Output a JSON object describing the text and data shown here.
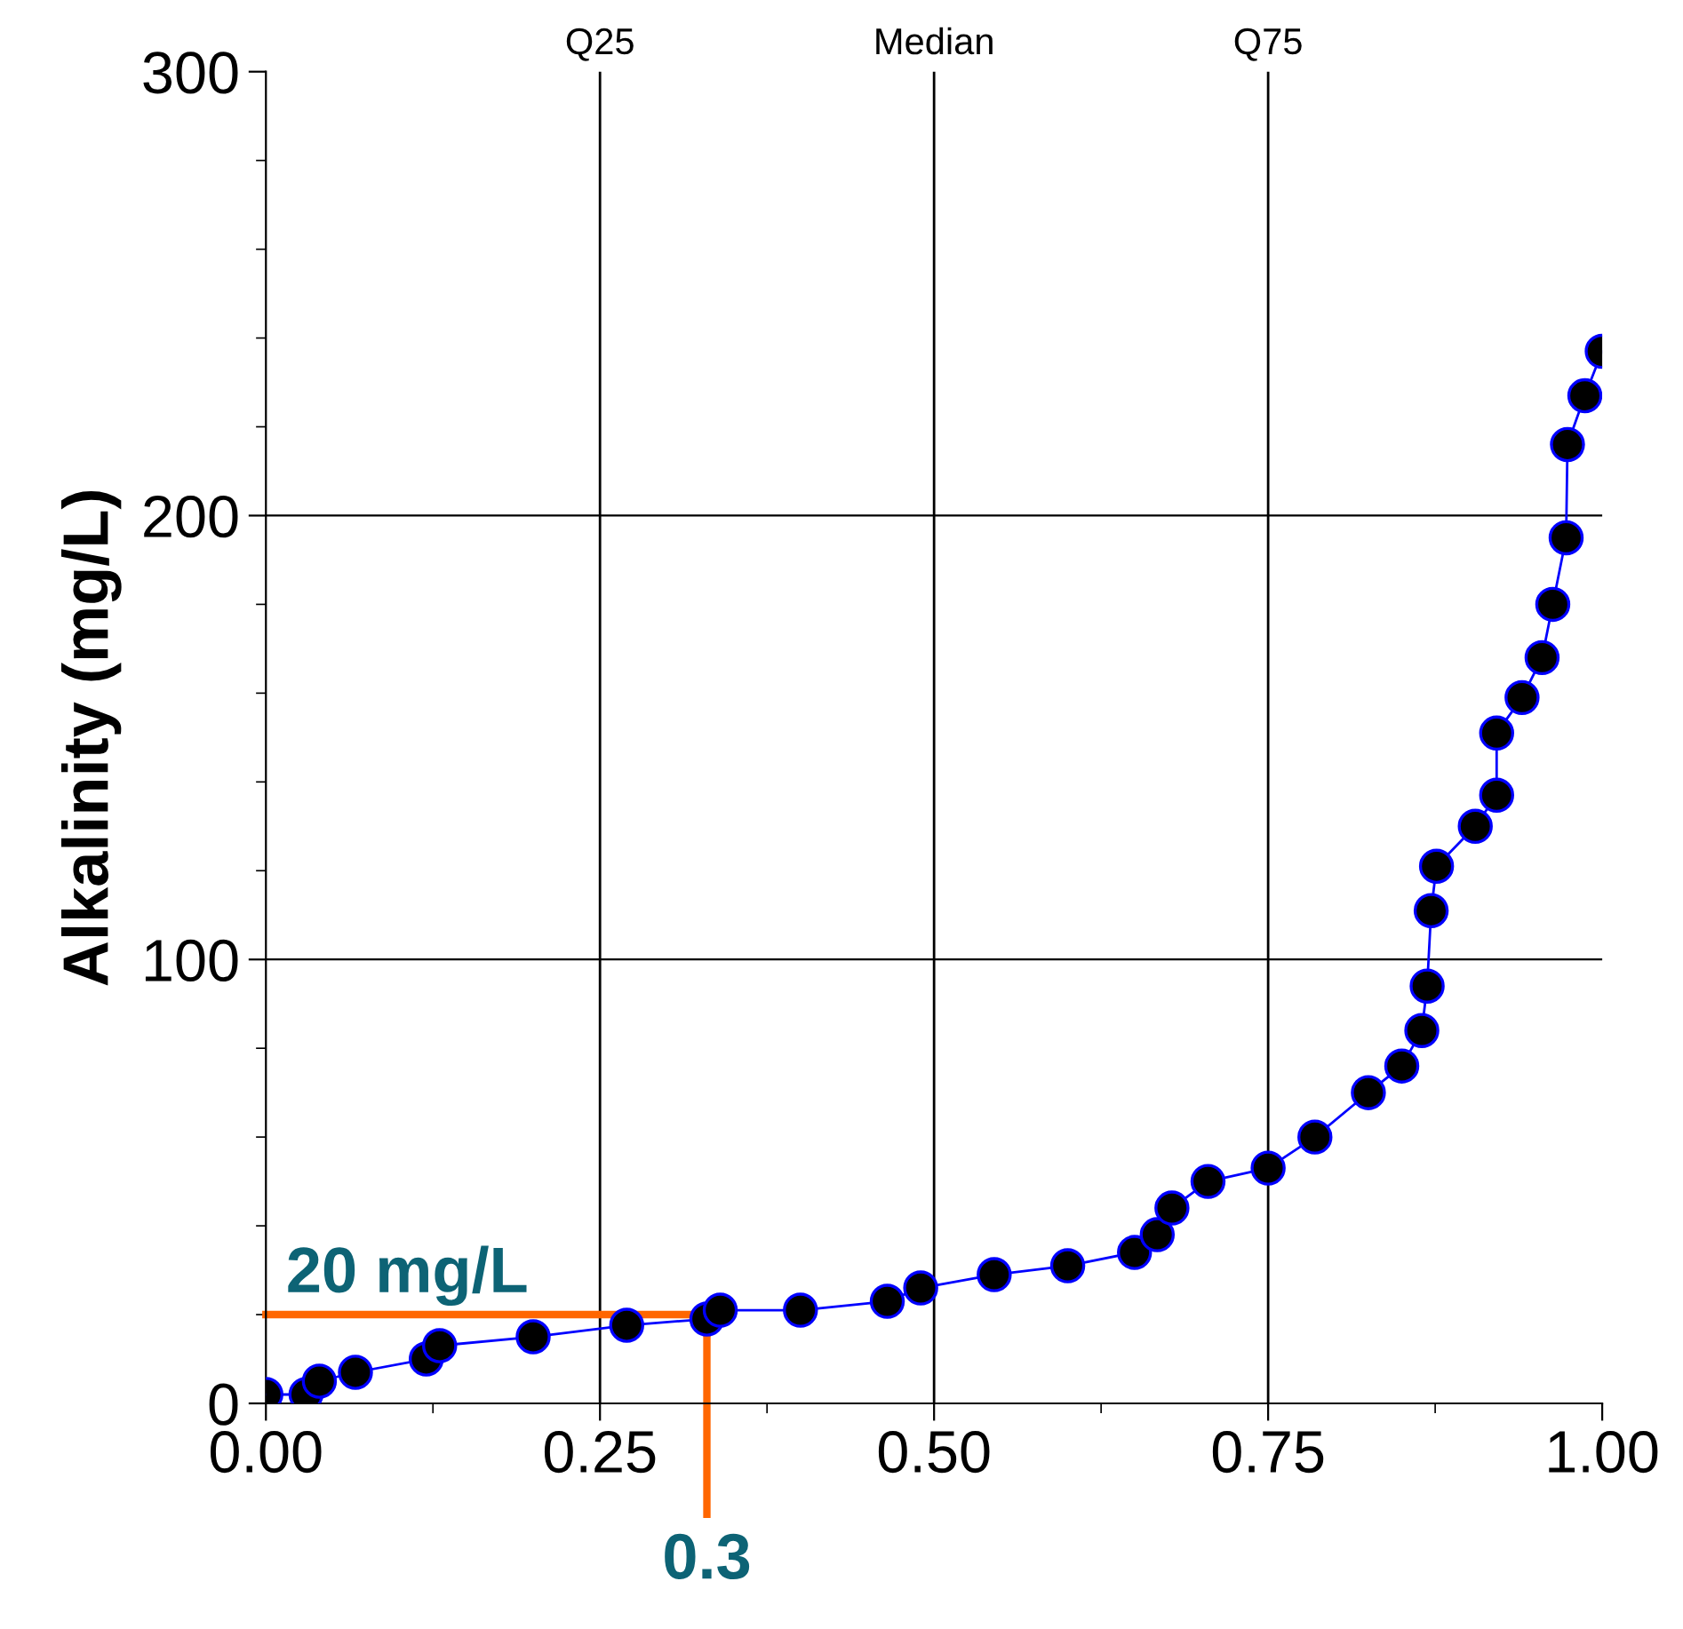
{
  "chart_data": {
    "type": "line",
    "ylabel": "Alkalinity (mg/L)",
    "marker": "circle",
    "grid": "y",
    "xlim": [
      0,
      1
    ],
    "ylim": [
      0,
      300
    ],
    "xticks": [
      {
        "value": 0,
        "label": "0.00"
      },
      {
        "value": 0.125,
        "label": null
      },
      {
        "value": 0.25,
        "label": "0.25"
      },
      {
        "value": 0.375,
        "label": null
      },
      {
        "value": 0.5,
        "label": "0.50"
      },
      {
        "value": 0.625,
        "label": null
      },
      {
        "value": 0.75,
        "label": "0.75"
      },
      {
        "value": 0.875,
        "label": null
      },
      {
        "value": 1,
        "label": "1.00"
      }
    ],
    "yticks": [
      0,
      {
        "value": 20,
        "label": null
      },
      {
        "value": 40,
        "label": null
      },
      {
        "value": 60,
        "label": null
      },
      {
        "value": 80,
        "label": null
      },
      100,
      {
        "value": 120,
        "label": null
      },
      {
        "value": 140,
        "label": null
      },
      {
        "value": 160,
        "label": null
      },
      {
        "value": 180,
        "label": null
      },
      200,
      {
        "value": 220,
        "label": null
      },
      {
        "value": 240,
        "label": null
      },
      {
        "value": 260,
        "label": null
      },
      {
        "value": 280,
        "label": null
      },
      300
    ],
    "series": [
      {
        "color": "#0000ff",
        "x": [
          0,
          0.03,
          0.04,
          0.067,
          0.12,
          0.13,
          0.2,
          0.27,
          0.33,
          0.34,
          0.4,
          0.465,
          0.49,
          0.545,
          0.6,
          0.65,
          0.667,
          0.678,
          0.705,
          0.75,
          0.785,
          0.825,
          0.85,
          0.865,
          0.869,
          0.872,
          0.876,
          0.905,
          0.921,
          0.921,
          0.94,
          0.955,
          0.963,
          0.973,
          0.974,
          0.987,
          1.0
        ],
        "values": [
          2,
          2,
          5,
          7,
          10,
          13,
          15,
          17.6,
          19,
          21,
          21,
          23,
          26,
          29,
          31,
          34,
          38,
          44,
          50,
          53,
          60,
          70,
          76,
          84,
          94,
          111,
          121,
          130,
          137,
          151,
          159,
          168,
          180,
          195,
          216,
          227,
          237
        ]
      }
    ],
    "ref_lines": [
      {
        "axis": "y",
        "value": 20,
        "label": "20 mg/L",
        "color": "#ff6600"
      },
      {
        "axis": "x",
        "value": 0.33,
        "label": "0.3",
        "color": "#ff6600"
      },
      {
        "axis": "x",
        "value": 0.25,
        "label": "Q25",
        "color": "#000000"
      },
      {
        "axis": "x",
        "value": 0.5,
        "label": "Median",
        "color": "#000000"
      },
      {
        "axis": "x",
        "value": 0.75,
        "label": "Q75",
        "color": "#000000"
      }
    ]
  }
}
